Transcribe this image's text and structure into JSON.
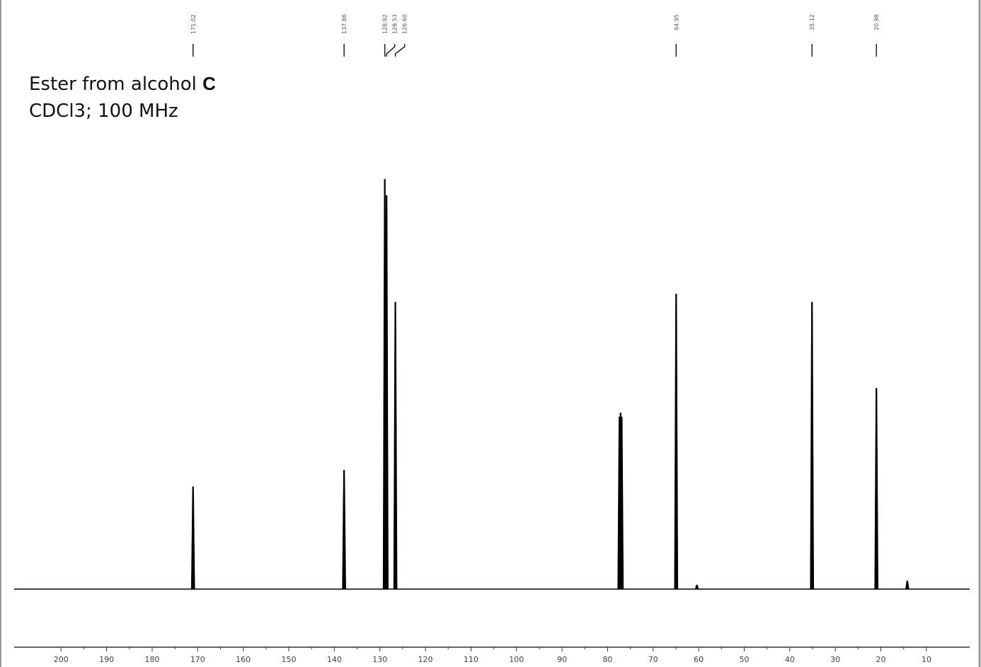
{
  "chart_data": {
    "type": "spectrum",
    "title": "Ester from alcohol",
    "title_bold": "C",
    "subtitle": "CDCl3; 100 MHz",
    "peaks": {
      "x": [
        171.02,
        137.86,
        128.92,
        128.53,
        126.6,
        77.4,
        77.16,
        76.9,
        64.95,
        60.4,
        35.12,
        20.98,
        14.2
      ],
      "values": [
        25,
        29,
        100,
        96,
        70,
        42,
        43,
        42,
        72,
        1,
        70,
        49,
        2
      ]
    },
    "peak_labels": [
      171.02,
      137.86,
      128.92,
      128.53,
      {
        "value": 126.6,
        "label": "126.60"
      },
      64.95,
      35.12,
      20.98
    ],
    "color": "#000000",
    "xlim": [
      210.3,
      0.5
    ],
    "ylim": [
      0,
      100
    ],
    "xticks": [
      200,
      190,
      180,
      170,
      160,
      150,
      140,
      130,
      120,
      110,
      100,
      90,
      80,
      70,
      60,
      50,
      40,
      30,
      20,
      10
    ]
  }
}
